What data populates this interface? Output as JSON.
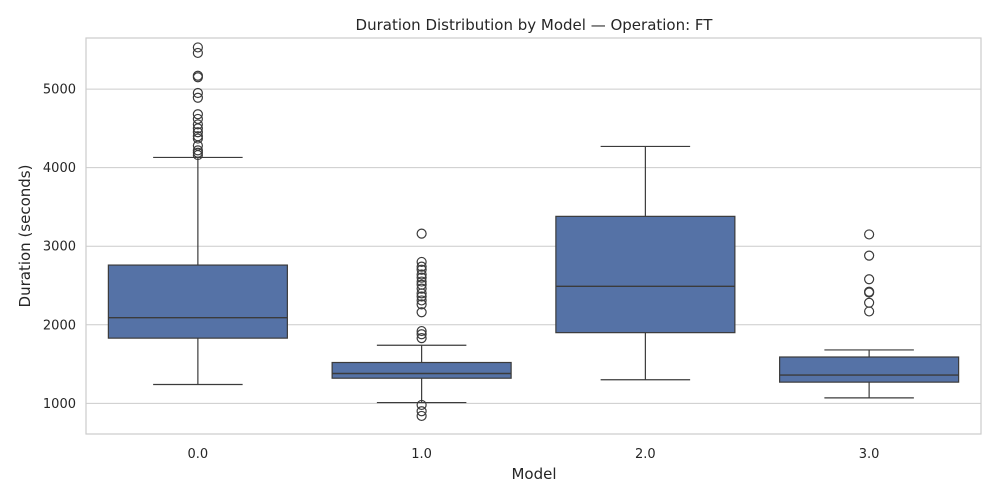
{
  "chart_data": {
    "type": "box",
    "title": "Duration Distribution by Model — Operation: FT",
    "xlabel": "Model",
    "ylabel": "Duration (seconds)",
    "categories": [
      "0.0",
      "1.0",
      "2.0",
      "3.0"
    ],
    "ylim": [
      610,
      5650
    ],
    "yticks": [
      1000,
      2000,
      3000,
      4000,
      5000
    ],
    "grid": true,
    "color": "#5572a6",
    "boxes": [
      {
        "category": "0.0",
        "whisker_low": 1240,
        "q1": 1830,
        "median": 2090,
        "q3": 2760,
        "whisker_high": 4130,
        "outliers": [
          4160,
          4190,
          4220,
          4280,
          4370,
          4400,
          4450,
          4500,
          4550,
          4620,
          4680,
          4890,
          4950,
          5150,
          5170,
          5460,
          5530
        ]
      },
      {
        "category": "1.0",
        "whisker_low": 1010,
        "q1": 1320,
        "median": 1380,
        "q3": 1520,
        "whisker_high": 1740,
        "outliers": [
          840,
          900,
          980,
          1830,
          1880,
          1920,
          2160,
          2260,
          2310,
          2360,
          2400,
          2460,
          2510,
          2550,
          2600,
          2640,
          2700,
          2740,
          2800,
          3160
        ]
      },
      {
        "category": "2.0",
        "whisker_low": 1300,
        "q1": 1900,
        "median": 2490,
        "q3": 3380,
        "whisker_high": 4270,
        "outliers": []
      },
      {
        "category": "3.0",
        "whisker_low": 1070,
        "q1": 1270,
        "median": 1360,
        "q3": 1590,
        "whisker_high": 1680,
        "outliers": [
          2170,
          2280,
          2410,
          2420,
          2580,
          2880,
          3150
        ]
      }
    ]
  }
}
